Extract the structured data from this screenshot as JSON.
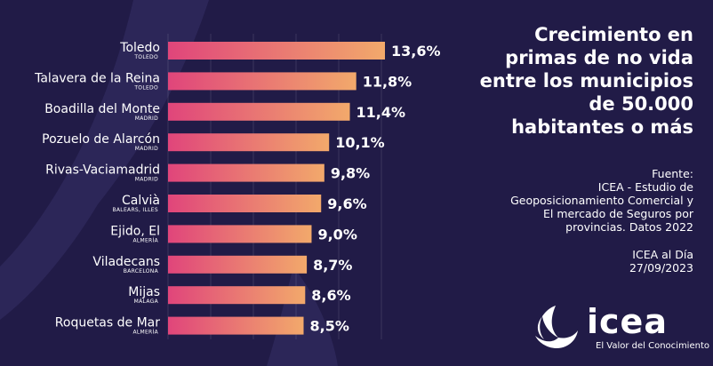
{
  "title_lines": [
    "Crecimiento en",
    "primas de no vida",
    "entre los municipios",
    "de 50.000",
    "habitantes o más"
  ],
  "source": {
    "label": "Fuente:",
    "lines": [
      "ICEA - Estudio de",
      "Geoposicionamiento Comercial y",
      "El mercado de Seguros por",
      "provincias. Datos 2022"
    ],
    "publisher": "ICEA al Día",
    "date": "27/09/2023"
  },
  "logo": {
    "word": "icea",
    "tagline": "El Valor del Conocimiento"
  },
  "colors": {
    "background": "#211b47",
    "bar_start": "#e0457b",
    "bar_end": "#f2a96b",
    "text": "#ffffff"
  },
  "chart_data": {
    "type": "bar",
    "orientation": "horizontal",
    "title": "Crecimiento en primas de no vida entre los municipios de 50.000 habitantes o más",
    "categories": [
      "Toledo",
      "Talavera de la Reina",
      "Boadilla del Monte",
      "Pozuelo de Alarcón",
      "Rivas-Vaciamadrid",
      "Calvià",
      "Ejido, El",
      "Viladecans",
      "Mijas",
      "Roquetas de Mar"
    ],
    "subcategories": [
      "TOLEDO",
      "TOLEDO",
      "MADRID",
      "MADRID",
      "MADRID",
      "BALEARS, ILLES",
      "ALMERÍA",
      "BARCELONA",
      "MÁLAGA",
      "ALMERÍA"
    ],
    "values": [
      13.6,
      11.8,
      11.4,
      10.1,
      9.8,
      9.6,
      9.0,
      8.7,
      8.6,
      8.5
    ],
    "value_labels": [
      "13,6%",
      "11,8%",
      "11,4%",
      "10,1%",
      "9,8%",
      "9,6%",
      "9,0%",
      "8,7%",
      "8,6%",
      "8,5%"
    ],
    "unit": "%",
    "xlim": [
      0,
      13.6
    ],
    "grid": true
  }
}
